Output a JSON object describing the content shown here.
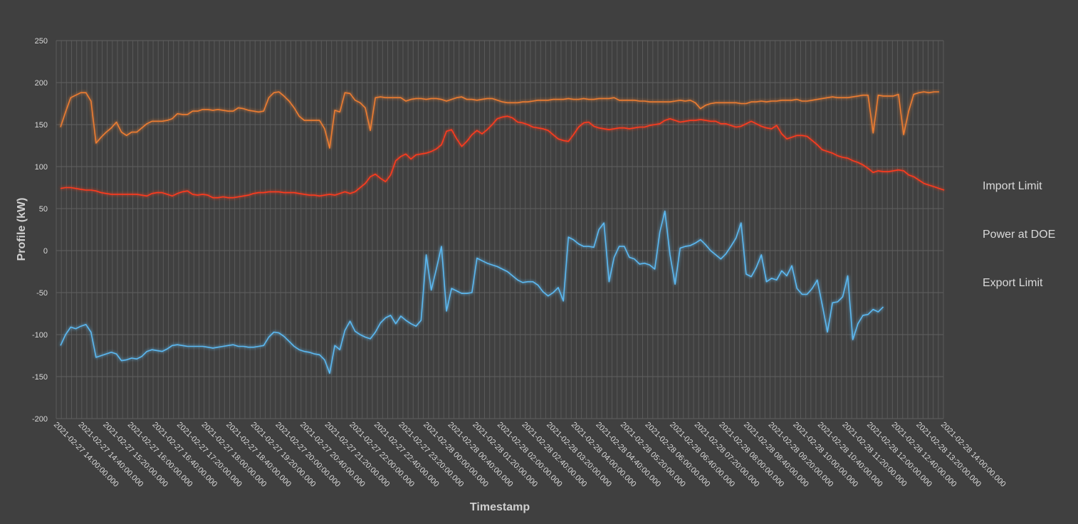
{
  "chart_data": {
    "type": "line",
    "title": "",
    "xlabel": "Timestamp",
    "ylabel": "Profile (kW)",
    "ylim": [
      -200,
      250
    ],
    "yticks": [
      -200,
      -150,
      -100,
      -50,
      0,
      50,
      100,
      150,
      200,
      250
    ],
    "grid": true,
    "legend_position": "right",
    "x_tick_labels": [
      "2021-02-27 14:00:00.000",
      "2021-02-27 14:40:00.000",
      "2021-02-27 15:20:00.000",
      "2021-02-27 16:00:00.000",
      "2021-02-27 16:40:00.000",
      "2021-02-27 17:20:00.000",
      "2021-02-27 18:00:00.000",
      "2021-02-27 18:40:00.000",
      "2021-02-27 19:20:00.000",
      "2021-02-27 20:00:00.000",
      "2021-02-27 20:40:00.000",
      "2021-02-27 21:20:00.000",
      "2021-02-27 22:00:00.000",
      "2021-02-27 22:40:00.000",
      "2021-02-27 23:20:00.000",
      "2021-02-28 00:00:00.000",
      "2021-02-28 00:40:00.000",
      "2021-02-28 01:20:00.000",
      "2021-02-28 02:00:00.000",
      "2021-02-28 02:40:00.000",
      "2021-02-28 03:20:00.000",
      "2021-02-28 04:00:00.000",
      "2021-02-28 04:40:00.000",
      "2021-02-28 05:20:00.000",
      "2021-02-28 06:00:00.000",
      "2021-02-28 06:40:00.000",
      "2021-02-28 07:20:00.000",
      "2021-02-28 08:00:00.000",
      "2021-02-28 08:40:00.000",
      "2021-02-28 09:20:00.000",
      "2021-02-28 10:00:00.000",
      "2021-02-28 10:40:00.000",
      "2021-02-28 11:20:00.000",
      "2021-02-28 12:00:00.000",
      "2021-02-28 12:40:00.000",
      "2021-02-28 13:20:00.000",
      "2021-02-28 14:00:00.000"
    ],
    "x_interval_minutes": 5,
    "series": [
      {
        "name": "Import Limit",
        "color": "#ed7d31",
        "values": [
          147,
          165,
          182,
          185,
          188,
          188,
          178,
          128,
          135,
          141,
          146,
          153,
          141,
          137,
          141,
          141,
          146,
          151,
          154,
          154,
          154,
          155,
          157,
          163,
          162,
          162,
          166,
          166,
          168,
          168,
          167,
          168,
          167,
          166,
          166,
          170,
          169,
          167,
          166,
          165,
          166,
          182,
          188,
          189,
          184,
          178,
          170,
          160,
          155,
          155,
          155,
          155,
          145,
          122,
          167,
          165,
          188,
          187,
          179,
          176,
          170,
          143,
          182,
          183,
          182,
          182,
          182,
          182,
          178,
          180,
          181,
          181,
          180,
          181,
          181,
          180,
          178,
          180,
          182,
          183,
          180,
          180,
          179,
          180,
          181,
          181,
          179,
          177,
          176,
          176,
          176,
          177,
          177,
          178,
          179,
          179,
          179,
          180,
          180,
          180,
          181,
          180,
          180,
          181,
          180,
          180,
          181,
          181,
          181,
          182,
          179,
          179,
          179,
          179,
          178,
          178,
          177,
          177,
          177,
          177,
          177,
          178,
          179,
          178,
          179,
          176,
          169,
          173,
          175,
          176,
          176,
          176,
          176,
          176,
          175,
          175,
          177,
          177,
          178,
          177,
          178,
          178,
          179,
          179,
          179,
          180,
          178,
          178,
          179,
          180,
          181,
          182,
          183,
          182,
          182,
          182,
          183,
          184,
          185,
          185,
          140,
          185,
          184,
          184,
          184,
          186,
          138,
          166,
          186,
          188,
          189,
          188,
          189,
          189
        ]
      },
      {
        "name": "Power at DOE",
        "color": "#ff3b1f",
        "values": [
          74,
          75,
          75,
          74,
          73,
          72,
          72,
          71,
          69,
          68,
          67,
          67,
          67,
          67,
          67,
          67,
          66,
          65,
          68,
          69,
          69,
          67,
          65,
          68,
          70,
          71,
          67,
          66,
          67,
          66,
          63,
          63,
          64,
          63,
          63,
          64,
          65,
          66,
          68,
          69,
          69,
          70,
          70,
          70,
          69,
          69,
          69,
          68,
          67,
          66,
          66,
          65,
          66,
          67,
          66,
          68,
          70,
          68,
          70,
          75,
          80,
          88,
          91,
          86,
          82,
          90,
          107,
          112,
          115,
          109,
          114,
          115,
          116,
          118,
          121,
          126,
          142,
          144,
          133,
          124,
          130,
          138,
          143,
          139,
          144,
          150,
          157,
          159,
          160,
          158,
          153,
          152,
          150,
          147,
          146,
          145,
          143,
          138,
          133,
          131,
          130,
          138,
          147,
          152,
          153,
          148,
          146,
          145,
          144,
          145,
          146,
          146,
          145,
          146,
          147,
          147,
          149,
          150,
          151,
          155,
          157,
          155,
          153,
          154,
          155,
          155,
          156,
          155,
          154,
          154,
          151,
          151,
          149,
          147,
          148,
          151,
          154,
          151,
          148,
          146,
          145,
          149,
          139,
          133,
          135,
          137,
          137,
          136,
          131,
          126,
          120,
          118,
          116,
          113,
          111,
          110,
          107,
          105,
          102,
          98,
          93,
          95,
          94,
          94,
          95,
          96,
          95,
          90,
          88,
          84,
          80,
          78,
          76,
          74,
          72
        ]
      },
      {
        "name": "Export Limit",
        "color": "#5bb8f0",
        "values": [
          -113,
          -100,
          -91,
          -93,
          -90,
          -88,
          -97,
          -127,
          -125,
          -123,
          -121,
          -123,
          -131,
          -130,
          -128,
          -129,
          -126,
          -120,
          -118,
          -119,
          -120,
          -117,
          -113,
          -112,
          -113,
          -114,
          -114,
          -114,
          -114,
          -115,
          -116,
          -115,
          -114,
          -113,
          -112,
          -114,
          -114,
          -115,
          -115,
          -114,
          -113,
          -103,
          -97,
          -98,
          -102,
          -108,
          -114,
          -118,
          -120,
          -121,
          -123,
          -124,
          -130,
          -146,
          -113,
          -118,
          -95,
          -84,
          -96,
          -100,
          -103,
          -105,
          -97,
          -86,
          -80,
          -77,
          -87,
          -78,
          -83,
          -87,
          -90,
          -83,
          -5,
          -47,
          -22,
          5,
          -72,
          -45,
          -48,
          -51,
          -51,
          -50,
          -9,
          -12,
          -15,
          -17,
          -19,
          -22,
          -25,
          -30,
          -35,
          -38,
          -37,
          -37,
          -41,
          -49,
          -54,
          -50,
          -44,
          -60,
          16,
          13,
          8,
          5,
          5,
          4,
          25,
          33,
          -37,
          -8,
          5,
          5,
          -8,
          -10,
          -16,
          -15,
          -17,
          -22,
          22,
          47,
          -5,
          -40,
          3,
          5,
          6,
          9,
          13,
          7,
          0,
          -5,
          -10,
          -4,
          5,
          15,
          33,
          -28,
          -31,
          -20,
          -5,
          -37,
          -33,
          -35,
          -24,
          -30,
          -18,
          -45,
          -52,
          -52,
          -45,
          -35,
          -65,
          -97,
          -62,
          -61,
          -55,
          -30,
          -106,
          -87,
          -77,
          -76,
          -70,
          -73,
          -67
        ]
      }
    ]
  }
}
